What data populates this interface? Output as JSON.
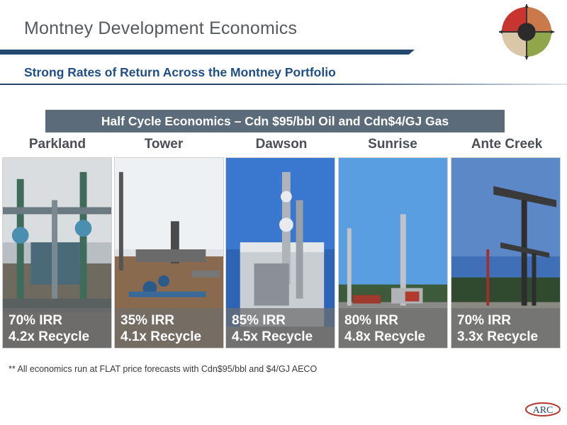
{
  "title": "Montney Development Economics",
  "subtitle": "Strong Rates of Return Across the Montney Portfolio",
  "banner": "Half Cycle Economics – Cdn $95/bbl Oil and Cdn$4/GJ Gas",
  "columns": [
    {
      "name": "Parkland",
      "irr": "70% IRR",
      "recycle": "4.2x Recycle"
    },
    {
      "name": "Tower",
      "irr": "35% IRR",
      "recycle": "4.1x Recycle"
    },
    {
      "name": "Dawson",
      "irr": "85% IRR",
      "recycle": "4.5x Recycle"
    },
    {
      "name": "Sunrise",
      "irr": "80% IRR",
      "recycle": "4.8x Recycle"
    },
    {
      "name": "Ante Creek",
      "irr": "70% IRR",
      "recycle": "3.3x Recycle"
    }
  ],
  "footnote": "**  All economics run at FLAT price forecasts with Cdn$95/bbl and $4/GJ AECO",
  "logo": {
    "text": "ARC",
    "icon": "arc-logo-icon"
  },
  "emblem": {
    "icon": "strategy-wheel-icon",
    "colors": [
      "#c8352e",
      "#c9794a",
      "#8fa64a",
      "#d9c7a8"
    ]
  },
  "colors": {
    "navy": "#24476e",
    "subtitle_blue": "#1f4f86",
    "banner_gray": "#5b6b7a",
    "overlay_gray": "#6e6e6e"
  }
}
